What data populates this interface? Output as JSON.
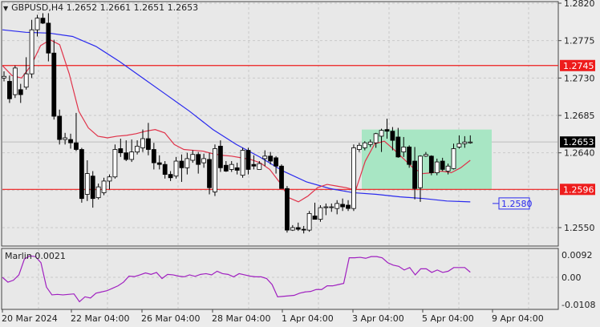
{
  "header": {
    "symbol": "GBPUSD,H4",
    "open": "1.2652",
    "high": "1.2661",
    "low": "1.2651",
    "close": "1.2653"
  },
  "indicator": {
    "name": "Marlin",
    "value": "0.0021",
    "label": "Marlin 0.0021"
  },
  "colors": {
    "background": "#e8e8e8",
    "grid": "#c8c8c8",
    "ma_fast": "#e0334a",
    "ma_slow": "#2a2aee",
    "level_line": "#ee1c1c",
    "box_fill": "#a8e6c4",
    "oscillator": "#a020c0",
    "bull_candle": "#ffffff",
    "bear_candle": "#000000"
  },
  "chart_data": [
    {
      "type": "candlestick",
      "title": "GBPUSD,H4",
      "ohlc_header": {
        "open": 1.2652,
        "high": 1.2661,
        "low": 1.2651,
        "close": 1.2653
      },
      "y_ticks": [
        "1.2820",
        "1.2775",
        "1.2730",
        "1.2685",
        "1.2640",
        "1.2550"
      ],
      "ylim": [
        1.2528,
        1.2822
      ],
      "x_ticks": [
        "20 Mar 2024",
        "22 Mar 04:00",
        "26 Mar 04:00",
        "28 Mar 04:00",
        "1 Apr 04:00",
        "3 Apr 04:00",
        "5 Apr 04:00",
        "9 Apr 04:00"
      ],
      "price_labels": [
        {
          "value": "1.2745",
          "type": "horizontal-level",
          "color": "#ee1c1c"
        },
        {
          "value": "1.2596",
          "type": "horizontal-level",
          "color": "#ee1c1c"
        },
        {
          "value": "1.2653",
          "type": "current-price",
          "color": "#000000"
        },
        {
          "value": "1.2580",
          "type": "ma-label",
          "color": "#2a2aee"
        }
      ],
      "rectangle": {
        "from_price": 1.2596,
        "to_price": 1.2668,
        "from_x_label": "3 Apr 04:00",
        "to_x_label": "9 Apr 04:00",
        "color": "#a8e6c4"
      },
      "candles": [
        [
          1.273,
          1.2738,
          1.2726,
          1.2732
        ],
        [
          1.2726,
          1.2733,
          1.27,
          1.2705
        ],
        [
          1.271,
          1.2745,
          1.2706,
          1.2742
        ],
        [
          1.2716,
          1.2723,
          1.27,
          1.271
        ],
        [
          1.2719,
          1.2755,
          1.2716,
          1.2735
        ],
        [
          1.2735,
          1.28,
          1.273,
          1.2788
        ],
        [
          1.2788,
          1.2806,
          1.278,
          1.2802
        ],
        [
          1.2802,
          1.2808,
          1.2795,
          1.2796
        ],
        [
          1.2796,
          1.2808,
          1.275,
          1.276
        ],
        [
          1.276,
          1.2776,
          1.268,
          1.2684
        ],
        [
          1.2684,
          1.2692,
          1.265,
          1.2656
        ],
        [
          1.2656,
          1.2664,
          1.265,
          1.2658
        ],
        [
          1.2656,
          1.2663,
          1.2645,
          1.2652
        ],
        [
          1.2652,
          1.2688,
          1.2642,
          1.2644
        ],
        [
          1.2644,
          1.2646,
          1.258,
          1.2585
        ],
        [
          1.259,
          1.2631,
          1.2582,
          1.2615
        ],
        [
          1.2612,
          1.2618,
          1.2574,
          1.2585
        ],
        [
          1.2586,
          1.2603,
          1.2584,
          1.2599
        ],
        [
          1.2592,
          1.261,
          1.2589,
          1.2606
        ],
        [
          1.2606,
          1.2614,
          1.2596,
          1.2611
        ],
        [
          1.2611,
          1.265,
          1.2609,
          1.2644
        ],
        [
          1.2645,
          1.2657,
          1.2635,
          1.264
        ],
        [
          1.264,
          1.2655,
          1.263,
          1.2632
        ],
        [
          1.2632,
          1.2656,
          1.2629,
          1.2641
        ],
        [
          1.2641,
          1.2655,
          1.2638,
          1.2648
        ],
        [
          1.2646,
          1.2668,
          1.2641,
          1.2657
        ],
        [
          1.2657,
          1.2676,
          1.2637,
          1.2644
        ],
        [
          1.2644,
          1.2652,
          1.262,
          1.2628
        ],
        [
          1.2628,
          1.2637,
          1.262,
          1.2626
        ],
        [
          1.2626,
          1.263,
          1.2609,
          1.2614
        ],
        [
          1.2614,
          1.2618,
          1.2606,
          1.261
        ],
        [
          1.2612,
          1.2635,
          1.2609,
          1.263
        ],
        [
          1.263,
          1.2638,
          1.2605,
          1.2622
        ],
        [
          1.2622,
          1.264,
          1.2614,
          1.2633
        ],
        [
          1.2631,
          1.2643,
          1.2628,
          1.2638
        ],
        [
          1.2638,
          1.2641,
          1.2615,
          1.2626
        ],
        [
          1.2628,
          1.2639,
          1.2622,
          1.2633
        ],
        [
          1.2632,
          1.264,
          1.259,
          1.2598
        ],
        [
          1.2593,
          1.265,
          1.2588,
          1.2645
        ],
        [
          1.2648,
          1.2655,
          1.2617,
          1.2622
        ],
        [
          1.2625,
          1.263,
          1.2617,
          1.2618
        ],
        [
          1.262,
          1.263,
          1.2617,
          1.2626
        ],
        [
          1.2622,
          1.2628,
          1.2614,
          1.2619
        ],
        [
          1.2613,
          1.2646,
          1.261,
          1.2643
        ],
        [
          1.2643,
          1.2646,
          1.2614,
          1.262
        ],
        [
          1.2626,
          1.2637,
          1.262,
          1.2624
        ],
        [
          1.262,
          1.263,
          1.262,
          1.2627
        ],
        [
          1.2633,
          1.2643,
          1.2624,
          1.2636
        ],
        [
          1.2636,
          1.2641,
          1.2626,
          1.263
        ],
        [
          1.2634,
          1.2636,
          1.2615,
          1.2624
        ],
        [
          1.2624,
          1.2626,
          1.26,
          1.2597
        ],
        [
          1.2597,
          1.26,
          1.2544,
          1.2547
        ],
        [
          1.2547,
          1.2553,
          1.2546,
          1.255
        ],
        [
          1.255,
          1.2556,
          1.2546,
          1.2548
        ],
        [
          1.2548,
          1.2552,
          1.2543,
          1.2547
        ],
        [
          1.2547,
          1.257,
          1.2545,
          1.2567
        ],
        [
          1.2564,
          1.258,
          1.256,
          1.256
        ],
        [
          1.256,
          1.2577,
          1.2557,
          1.2574
        ],
        [
          1.2574,
          1.2579,
          1.2565,
          1.2575
        ],
        [
          1.2575,
          1.2579,
          1.2569,
          1.2575
        ],
        [
          1.2573,
          1.2583,
          1.2566,
          1.2579
        ],
        [
          1.2578,
          1.2585,
          1.257,
          1.2575
        ],
        [
          1.2577,
          1.2583,
          1.257,
          1.2573
        ],
        [
          1.2573,
          1.265,
          1.257,
          1.2646
        ],
        [
          1.2644,
          1.2652,
          1.2641,
          1.2649
        ],
        [
          1.2646,
          1.2654,
          1.2643,
          1.2652
        ],
        [
          1.265,
          1.2656,
          1.2647,
          1.2653
        ],
        [
          1.2652,
          1.2664,
          1.2646,
          1.2663
        ],
        [
          1.266,
          1.2669,
          1.2641,
          1.2667
        ],
        [
          1.2668,
          1.2681,
          1.2657,
          1.2666
        ],
        [
          1.2666,
          1.2671,
          1.2643,
          1.2655
        ],
        [
          1.2659,
          1.267,
          1.2634,
          1.2635
        ],
        [
          1.2641,
          1.2659,
          1.2635,
          1.2647
        ],
        [
          1.2647,
          1.2649,
          1.2622,
          1.2626
        ],
        [
          1.263,
          1.2647,
          1.2584,
          1.2597
        ],
        [
          1.2598,
          1.2637,
          1.2581,
          1.2636
        ],
        [
          1.2636,
          1.2641,
          1.2635,
          1.2638
        ],
        [
          1.2636,
          1.2637,
          1.2613,
          1.2616
        ],
        [
          1.2616,
          1.2633,
          1.2613,
          1.2629
        ],
        [
          1.263,
          1.2634,
          1.2618,
          1.262
        ],
        [
          1.2618,
          1.2627,
          1.2614,
          1.2624
        ],
        [
          1.2621,
          1.2651,
          1.262,
          1.2645
        ],
        [
          1.2647,
          1.2661,
          1.2645,
          1.2651
        ],
        [
          1.2651,
          1.266,
          1.2646,
          1.2653
        ],
        [
          1.2652,
          1.2661,
          1.2651,
          1.2653
        ]
      ],
      "ma_fast_points_price": [
        1.2745,
        1.2733,
        1.273,
        1.2745,
        1.2769,
        1.2776,
        1.277,
        1.2735,
        1.269,
        1.267,
        1.266,
        1.2658,
        1.266,
        1.2661,
        1.2663,
        1.2666,
        1.2668,
        1.2664,
        1.265,
        1.2644,
        1.2643,
        1.2642,
        1.2639,
        1.2637,
        1.2636,
        1.2634,
        1.2632,
        1.2628,
        1.262,
        1.2605,
        1.2586,
        1.2581,
        1.2588,
        1.2598,
        1.2602,
        1.26,
        1.2598,
        1.2595,
        1.263,
        1.2651,
        1.2654,
        1.2644,
        1.2633,
        1.2622,
        1.2615,
        1.2616,
        1.2618,
        1.2616,
        1.2622,
        1.2631
      ],
      "ma_slow_points_price": [
        1.2788,
        1.2785,
        1.2784,
        1.278,
        1.2768,
        1.275,
        1.273,
        1.271,
        1.269,
        1.2668,
        1.265,
        1.2635,
        1.2618,
        1.2605,
        1.2597,
        1.2592,
        1.259,
        1.2587,
        1.2585,
        1.2582,
        1.2581
      ],
      "sub_window": {
        "name": "Marlin",
        "value": 0.0021,
        "y_ticks": [
          "0.0092",
          "0.00",
          "-0.0108"
        ],
        "ylim": [
          -0.0125,
          0.0105
        ],
        "values": [
          0.0,
          -0.002,
          -0.0012,
          0.001,
          0.0075,
          0.0088,
          0.0085,
          0.006,
          -0.004,
          -0.0072,
          -0.007,
          -0.0072,
          -0.007,
          -0.0068,
          -0.01,
          -0.008,
          -0.0085,
          -0.0065,
          -0.006,
          -0.0055,
          -0.0045,
          -0.0035,
          -0.002,
          0.0005,
          0.0003,
          0.001,
          0.0018,
          0.0012,
          0.002,
          -0.0005,
          0.0012,
          0.001,
          0.0005,
          0.0002,
          0.001,
          0.0004,
          0.0012,
          0.0015,
          0.001,
          0.0025,
          0.0015,
          0.0012,
          0.0002,
          0.0015,
          0.001,
          0.0005,
          0.0002,
          0.0002,
          -0.0005,
          -0.003,
          -0.008,
          -0.0078,
          -0.0076,
          -0.0074,
          -0.0065,
          -0.006,
          -0.0058,
          -0.005,
          -0.005,
          -0.0035,
          -0.0035,
          -0.003,
          -0.0025,
          0.008,
          0.008,
          0.0082,
          0.0078,
          0.0085,
          0.0085,
          0.008,
          0.006,
          0.005,
          0.0045,
          0.003,
          0.004,
          0.001,
          0.0035,
          0.0035,
          0.002,
          0.003,
          0.002,
          0.0025,
          0.004,
          0.004,
          0.004,
          0.0021
        ]
      }
    }
  ]
}
